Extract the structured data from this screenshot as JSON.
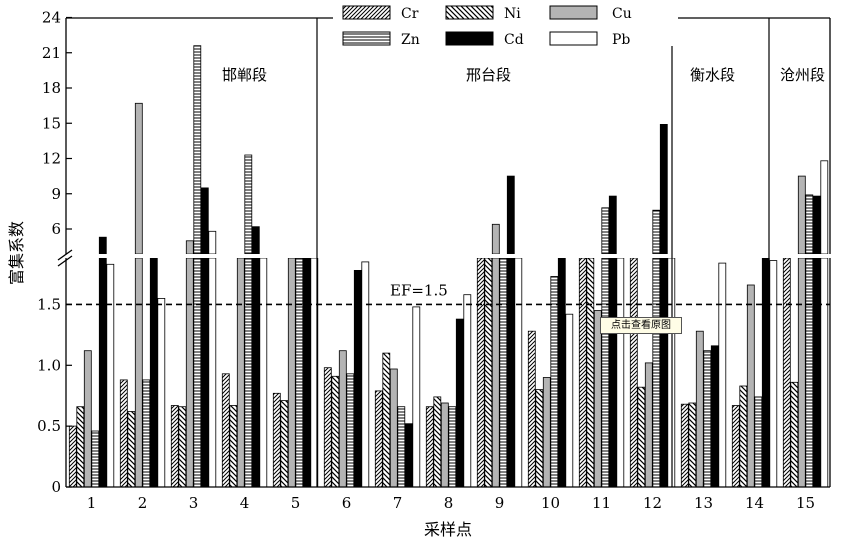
{
  "chart_data": {
    "type": "bar",
    "title": "",
    "xlabel": "采样点",
    "ylabel": "富集系数",
    "categories": [
      "1",
      "2",
      "3",
      "4",
      "5",
      "6",
      "7",
      "8",
      "9",
      "10",
      "11",
      "12",
      "13",
      "14",
      "15"
    ],
    "y_axis": {
      "lower_range": [
        0,
        2.0
      ],
      "lower_ticks": [
        "0",
        "0.5",
        "1.0",
        "1.5"
      ],
      "upper_range": [
        3.4,
        24
      ],
      "upper_ticks": [
        "6",
        "9",
        "12",
        "15",
        "18",
        "21",
        "24"
      ],
      "axis_break": true
    },
    "series": [
      {
        "name": "Cr",
        "pattern": "diag-right",
        "values": [
          0.5,
          0.88,
          0.67,
          0.93,
          0.77,
          0.98,
          0.79,
          0.66,
          1.9,
          1.28,
          1.9,
          1.9,
          0.68,
          0.67,
          1.9
        ]
      },
      {
        "name": "Ni",
        "pattern": "diag-left",
        "values": [
          0.66,
          0.62,
          0.66,
          0.67,
          0.71,
          0.91,
          1.1,
          0.74,
          1.9,
          0.8,
          1.9,
          0.82,
          0.69,
          0.83,
          0.86
        ]
      },
      {
        "name": "Cu",
        "pattern": "gray",
        "values": [
          1.12,
          16.7,
          5.0,
          1.9,
          1.9,
          1.12,
          0.97,
          0.69,
          6.4,
          0.9,
          1.45,
          1.02,
          1.28,
          1.66,
          10.5
        ]
      },
      {
        "name": "Zn",
        "pattern": "horizontal",
        "values": [
          0.46,
          0.88,
          21.6,
          12.3,
          1.9,
          0.93,
          0.66,
          0.66,
          1.9,
          1.73,
          7.8,
          7.6,
          1.12,
          0.74,
          8.9
        ]
      },
      {
        "name": "Cd",
        "pattern": "black",
        "values": [
          5.3,
          1.9,
          9.5,
          6.2,
          1.9,
          1.78,
          0.52,
          1.38,
          10.5,
          1.9,
          8.8,
          14.9,
          1.16,
          1.9,
          8.8
        ]
      },
      {
        "name": "Pb",
        "pattern": "white",
        "values": [
          1.83,
          1.55,
          5.8,
          1.9,
          1.9,
          1.85,
          1.48,
          1.58,
          1.9,
          1.42,
          1.9,
          1.9,
          1.84,
          1.86,
          11.8
        ]
      }
    ],
    "reference_line": {
      "y": 1.5,
      "label": "EF=1.5",
      "style": "dashed"
    },
    "segments": [
      {
        "label": "邯郸段",
        "from": 1,
        "to": 5
      },
      {
        "label": "邢台段",
        "from": 6,
        "to": 12
      },
      {
        "label": "衡水段",
        "from": 13,
        "to": 14
      },
      {
        "label": "沧州段",
        "from": 15,
        "to": 15
      }
    ],
    "legend": {
      "position": "top-center",
      "columns": 3
    },
    "grid": false
  },
  "overlay": {
    "tooltip_text": "点击查看原图",
    "colors": {
      "tooltip_bg": "#fffde6"
    }
  }
}
